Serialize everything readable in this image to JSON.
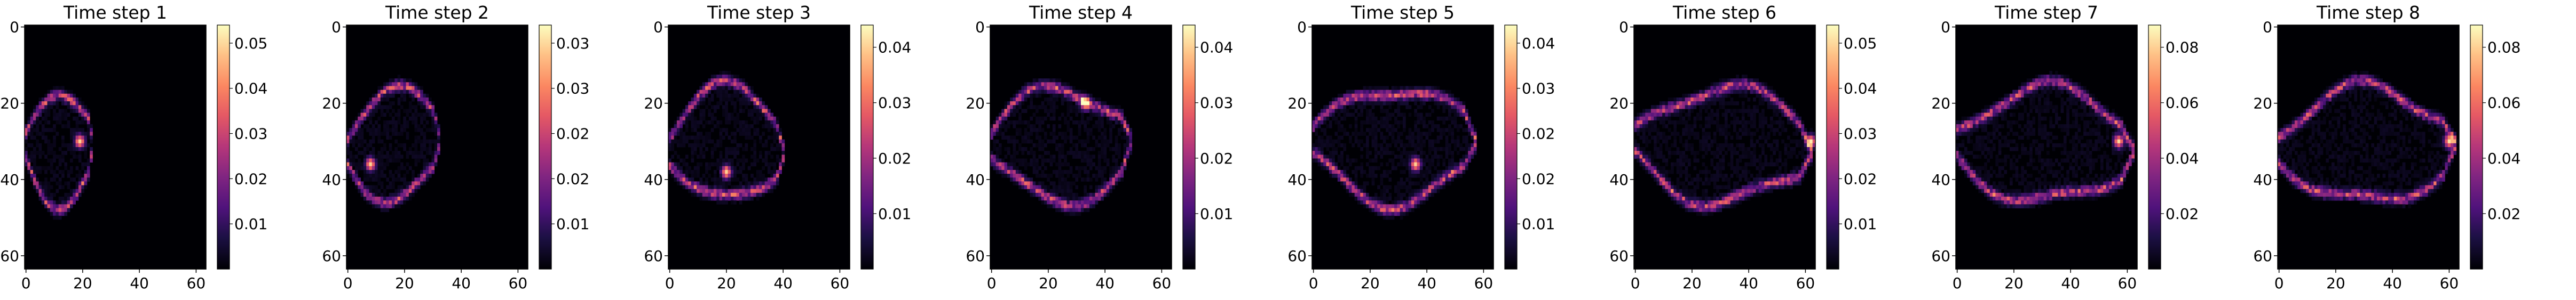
{
  "figure": {
    "panel_count": 8
  },
  "chart_data": [
    {
      "type": "heatmap",
      "title": "Time step 1",
      "colormap": "magma",
      "xlim": [
        0,
        63
      ],
      "ylim": [
        0,
        63
      ],
      "y_inverted": true,
      "x_ticks": [
        "0",
        "20",
        "40",
        "60"
      ],
      "y_ticks": [
        "0",
        "20",
        "40",
        "60"
      ],
      "colorbar": {
        "min": 0.0,
        "max": 0.058,
        "ticks": [
          "0.01",
          "0.02",
          "0.03",
          "0.04",
          "0.05"
        ]
      },
      "plume": {
        "tip": 24,
        "peak_x": 19,
        "peak_y": 30,
        "peak_value": 0.058
      }
    },
    {
      "type": "heatmap",
      "title": "Time step 2",
      "colormap": "magma",
      "xlim": [
        0,
        63
      ],
      "ylim": [
        0,
        63
      ],
      "y_inverted": true,
      "x_ticks": [
        "0",
        "20",
        "40",
        "60"
      ],
      "y_ticks": [
        "0",
        "20",
        "40",
        "60"
      ],
      "colorbar": {
        "min": 0.0,
        "max": 0.037,
        "ticks": [
          "0.01",
          "0.02",
          "0.02",
          "0.03",
          "0.03"
        ]
      },
      "plume": {
        "tip": 33,
        "peak_x": 8,
        "peak_y": 36,
        "peak_value": 0.037
      }
    },
    {
      "type": "heatmap",
      "title": "Time step 3",
      "colormap": "magma",
      "xlim": [
        0,
        63
      ],
      "ylim": [
        0,
        63
      ],
      "y_inverted": true,
      "x_ticks": [
        "0",
        "20",
        "40",
        "60"
      ],
      "y_ticks": [
        "0",
        "20",
        "40",
        "60"
      ],
      "colorbar": {
        "min": 0.0,
        "max": 0.046,
        "ticks": [
          "0.01",
          "0.02",
          "0.03",
          "0.04"
        ]
      },
      "plume": {
        "tip": 41,
        "peak_x": 20,
        "peak_y": 38,
        "peak_value": 0.046
      }
    },
    {
      "type": "heatmap",
      "title": "Time step 4",
      "colormap": "magma",
      "xlim": [
        0,
        63
      ],
      "ylim": [
        0,
        63
      ],
      "y_inverted": true,
      "x_ticks": [
        "0",
        "20",
        "40",
        "60"
      ],
      "y_ticks": [
        "0",
        "20",
        "40",
        "60"
      ],
      "colorbar": {
        "min": 0.0,
        "max": 0.048,
        "ticks": [
          "0.01",
          "0.02",
          "0.03",
          "0.04"
        ]
      },
      "plume": {
        "tip": 50,
        "peak_x": 33,
        "peak_y": 20,
        "peak_value": 0.048
      }
    },
    {
      "type": "heatmap",
      "title": "Time step 5",
      "colormap": "magma",
      "xlim": [
        0,
        63
      ],
      "ylim": [
        0,
        63
      ],
      "y_inverted": true,
      "x_ticks": [
        "0",
        "20",
        "40",
        "60"
      ],
      "y_ticks": [
        "0",
        "20",
        "40",
        "60"
      ],
      "colorbar": {
        "min": 0.0,
        "max": 0.05,
        "ticks": [
          "0.01",
          "0.02",
          "0.02",
          "0.03",
          "0.04"
        ]
      },
      "plume": {
        "tip": 58,
        "peak_x": 36,
        "peak_y": 36,
        "peak_value": 0.05
      }
    },
    {
      "type": "heatmap",
      "title": "Time step 6",
      "colormap": "magma",
      "xlim": [
        0,
        63
      ],
      "ylim": [
        0,
        63
      ],
      "y_inverted": true,
      "x_ticks": [
        "0",
        "20",
        "40",
        "60"
      ],
      "y_ticks": [
        "0",
        "20",
        "40",
        "60"
      ],
      "colorbar": {
        "min": 0.0,
        "max": 0.058,
        "ticks": [
          "0.01",
          "0.02",
          "0.03",
          "0.04",
          "0.05"
        ]
      },
      "plume": {
        "tip": 63,
        "peak_x": 62,
        "peak_y": 30,
        "peak_value": 0.058
      }
    },
    {
      "type": "heatmap",
      "title": "Time step 7",
      "colormap": "magma",
      "xlim": [
        0,
        63
      ],
      "ylim": [
        0,
        63
      ],
      "y_inverted": true,
      "x_ticks": [
        "0",
        "20",
        "40",
        "60"
      ],
      "y_ticks": [
        "0",
        "20",
        "40",
        "60"
      ],
      "colorbar": {
        "min": 0.0,
        "max": 0.095,
        "ticks": [
          "0.02",
          "0.04",
          "0.06",
          "0.08"
        ]
      },
      "plume": {
        "tip": 63,
        "peak_x": 57,
        "peak_y": 30,
        "peak_value": 0.095
      }
    },
    {
      "type": "heatmap",
      "title": "Time step 8",
      "colormap": "magma",
      "xlim": [
        0,
        63
      ],
      "ylim": [
        0,
        63
      ],
      "y_inverted": true,
      "x_ticks": [
        "0",
        "20",
        "40",
        "60"
      ],
      "y_ticks": [
        "0",
        "20",
        "40",
        "60"
      ],
      "colorbar": {
        "min": 0.0,
        "max": 0.092,
        "ticks": [
          "0.02",
          "0.04",
          "0.06",
          "0.08"
        ]
      },
      "plume": {
        "tip": 63,
        "peak_x": 60,
        "peak_y": 30,
        "peak_value": 0.092
      }
    }
  ]
}
